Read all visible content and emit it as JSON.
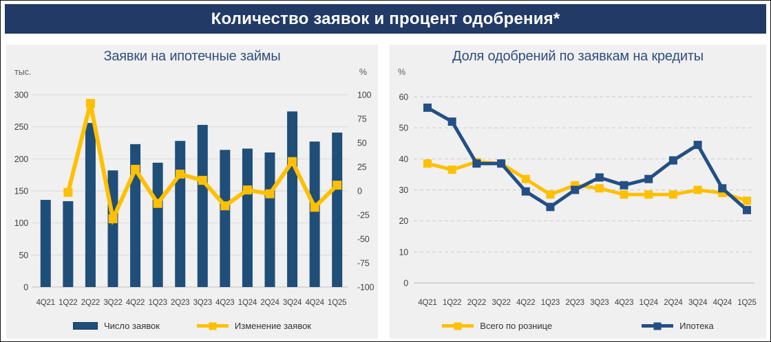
{
  "banner": {
    "title": "Количество заявок и процент одобрения*"
  },
  "colors": {
    "bar_navy": "#1F4E79",
    "line_navy": "#234F85",
    "line_yellow": "#FFC000",
    "banner_bg": "#213A66",
    "panel_bg": "#F0F0F0",
    "grid_solid": "#D9D9D9",
    "grid_dashed": "#C9C9C9",
    "axis_text": "#404040",
    "title_text": "#2F4E7F"
  },
  "chart_data": [
    {
      "type": "combo_bar_line",
      "title": "Заявки на ипотечные займы",
      "left_axis_label": "тыс.",
      "right_axis_label": "%",
      "categories": [
        "4Q21",
        "1Q22",
        "2Q22",
        "3Q22",
        "4Q22",
        "1Q23",
        "2Q23",
        "3Q23",
        "4Q23",
        "1Q24",
        "2Q24",
        "3Q24",
        "4Q24",
        "1Q25"
      ],
      "series": [
        {
          "name": "Число заявок",
          "kind": "bar",
          "axis": "left",
          "color": "#1F4E79",
          "values": [
            136,
            134,
            256,
            182,
            223,
            194,
            228,
            253,
            214,
            216,
            210,
            274,
            227,
            241
          ]
        },
        {
          "name": "Изменение заявок",
          "kind": "line",
          "axis": "right",
          "color": "#FFC000",
          "values": [
            null,
            -1.5,
            91,
            -29,
            22.5,
            -13,
            17.5,
            11,
            -15.5,
            1,
            -3,
            30.5,
            -17,
            6
          ]
        }
      ],
      "left_axis": {
        "min": 0,
        "max": 300,
        "ticks": [
          0,
          50,
          100,
          150,
          200,
          250,
          300
        ]
      },
      "right_axis": {
        "min": -100,
        "max": 100,
        "ticks": [
          -100,
          -75,
          -50,
          -25,
          0,
          25,
          50,
          75,
          100
        ]
      },
      "grid": "solid",
      "legend_position": "bottom"
    },
    {
      "type": "line",
      "title": "Доля одобрений по заявкам на кредиты",
      "y_axis_label": "%",
      "categories": [
        "4Q21",
        "1Q22",
        "2Q22",
        "3Q22",
        "4Q22",
        "1Q23",
        "2Q23",
        "3Q23",
        "4Q23",
        "1Q24",
        "2Q24",
        "3Q24",
        "4Q24",
        "1Q25"
      ],
      "series": [
        {
          "name": "Всего по рознице",
          "color": "#FFC000",
          "values": [
            38.5,
            36.5,
            39,
            38.5,
            33.5,
            28.5,
            31.5,
            30.5,
            28.5,
            28.5,
            28.5,
            30,
            29,
            26.5
          ]
        },
        {
          "name": "Ипотека",
          "color": "#234F85",
          "values": [
            56.5,
            52,
            38.5,
            38.5,
            29.5,
            24.5,
            30,
            34,
            31.5,
            33.5,
            39.5,
            44.5,
            30.5,
            23.5
          ]
        }
      ],
      "y_axis": {
        "min": 0,
        "max": 60,
        "ticks": [
          0,
          10,
          20,
          30,
          40,
          50,
          60
        ]
      },
      "grid": "dashed",
      "legend_position": "bottom"
    }
  ]
}
